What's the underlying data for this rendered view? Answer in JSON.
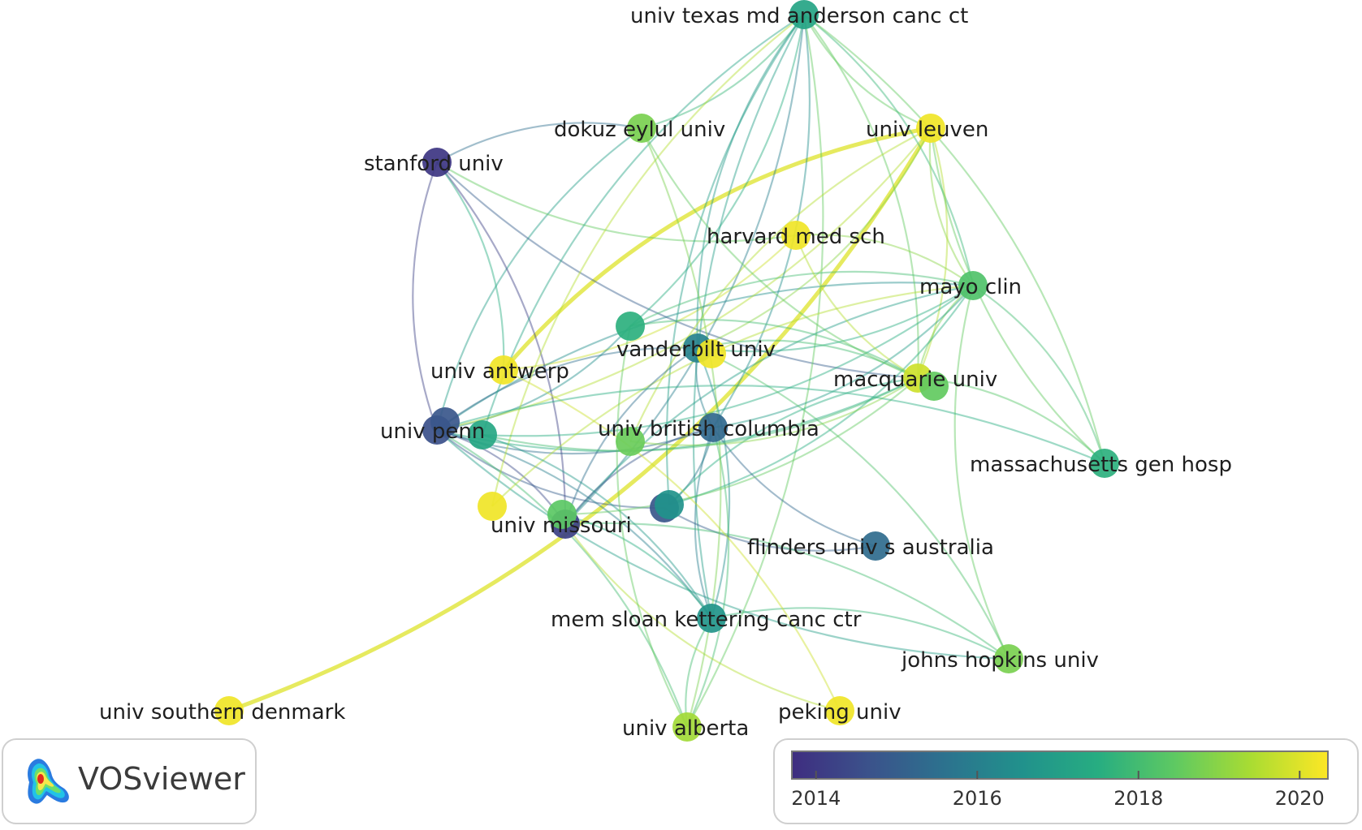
{
  "app": {
    "logo_text": "VOSviewer"
  },
  "legend": {
    "ticks": [
      "2014",
      "2016",
      "2018",
      "2020"
    ],
    "tick_values": [
      2014,
      2016,
      2018,
      2020
    ],
    "range": [
      2013.7,
      2020.35
    ],
    "colormap": [
      "#3e2d80",
      "#3b528b",
      "#2c728e",
      "#21918c",
      "#27ad81",
      "#5ec962",
      "#aadc32",
      "#fde725"
    ]
  },
  "network": {
    "nodes": [
      {
        "id": "mdanderson",
        "label": "univ texas md anderson canc ct",
        "year": 2017.2
      },
      {
        "id": "dokuz",
        "label": "dokuz eylul univ",
        "year": 2018.8
      },
      {
        "id": "leuven",
        "label": "univ leuven",
        "year": 2020.2
      },
      {
        "id": "stanford",
        "label": "stanford univ",
        "year": 2013.9
      },
      {
        "id": "harvard",
        "label": "harvard med sch",
        "year": 2020.2
      },
      {
        "id": "mayo",
        "label": "mayo clin",
        "year": 2018.2
      },
      {
        "id": "unl1",
        "label": "",
        "year": 2017.6
      },
      {
        "id": "vanderbilt",
        "label": "vanderbilt univ",
        "year": 2016.1
      },
      {
        "id": "vandy_y",
        "label": "",
        "year": 2020.2
      },
      {
        "id": "antwerp",
        "label": "univ antwerp",
        "year": 2020.2
      },
      {
        "id": "macquarie",
        "label": "macquarie univ",
        "year": 2019.8
      },
      {
        "id": "macq_g",
        "label": "",
        "year": 2018.5
      },
      {
        "id": "penn",
        "label": "univ penn",
        "year": 2014.6
      },
      {
        "id": "penn2",
        "label": "",
        "year": 2014.8
      },
      {
        "id": "penn_g",
        "label": "",
        "year": 2017.3
      },
      {
        "id": "ubc",
        "label": "univ british columbia",
        "year": 2015.3
      },
      {
        "id": "ubc_g",
        "label": "",
        "year": 2018.6
      },
      {
        "id": "massgen",
        "label": "massachusetts gen hosp",
        "year": 2017.6
      },
      {
        "id": "missouri",
        "label": "univ missouri",
        "year": 2014.2
      },
      {
        "id": "miss_g",
        "label": "",
        "year": 2018.4
      },
      {
        "id": "miss_y",
        "label": "",
        "year": 2020.2
      },
      {
        "id": "unl2",
        "label": "",
        "year": 2014.8
      },
      {
        "id": "unl3",
        "label": "",
        "year": 2016.6
      },
      {
        "id": "flinders",
        "label": "flinders univ s australia",
        "year": 2015.4
      },
      {
        "id": "msk",
        "label": "mem sloan kettering canc ctr",
        "year": 2016.7
      },
      {
        "id": "jhu",
        "label": "johns hopkins univ",
        "year": 2018.8
      },
      {
        "id": "southern_denmark",
        "label": "univ southern denmark",
        "year": 2020.2
      },
      {
        "id": "alberta",
        "label": "univ alberta",
        "year": 2019.3
      },
      {
        "id": "peking",
        "label": "peking univ",
        "year": 2020.2
      }
    ],
    "links": [
      [
        "southern_denmark",
        "leuven",
        2020.0
      ],
      [
        "antwerp",
        "leuven",
        2020.0
      ],
      [
        "antwerp",
        "harvard",
        2019.8
      ],
      [
        "penn",
        "mayo",
        2016.5
      ],
      [
        "penn",
        "macquarie",
        2017.5
      ],
      [
        "penn",
        "vanderbilt",
        2015.5
      ],
      [
        "penn",
        "ubc",
        2015.5
      ],
      [
        "penn",
        "missouri",
        2014.5
      ],
      [
        "penn",
        "unl2",
        2015.0
      ],
      [
        "penn",
        "msk",
        2016.0
      ],
      [
        "penn",
        "jhu",
        2017.0
      ],
      [
        "penn",
        "alberta",
        2018.0
      ],
      [
        "penn",
        "unl1",
        2016.5
      ],
      [
        "penn",
        "dokuz",
        2017.0
      ],
      [
        "penn",
        "leuven",
        2019.5
      ],
      [
        "stanford",
        "dokuz",
        2015.5
      ],
      [
        "stanford",
        "penn",
        2014.2
      ],
      [
        "stanford",
        "missouri",
        2014.2
      ],
      [
        "stanford",
        "macquarie",
        2015.0
      ],
      [
        "stanford",
        "antwerp",
        2017.5
      ],
      [
        "stanford",
        "harvard",
        2018.5
      ],
      [
        "mdanderson",
        "dokuz",
        2017.8
      ],
      [
        "mdanderson",
        "leuven",
        2018.5
      ],
      [
        "mdanderson",
        "mayo",
        2017.8
      ],
      [
        "mdanderson",
        "vanderbilt",
        2016.8
      ],
      [
        "mdanderson",
        "unl1",
        2017.5
      ],
      [
        "mdanderson",
        "penn_g",
        2017.2
      ],
      [
        "mdanderson",
        "ubc",
        2016.5
      ],
      [
        "mdanderson",
        "unl3",
        2017.0
      ],
      [
        "mdanderson",
        "macquarie",
        2018.5
      ],
      [
        "mdanderson",
        "msk",
        2017.0
      ],
      [
        "mdanderson",
        "alberta",
        2018.5
      ],
      [
        "mdanderson",
        "miss_y",
        2019.5
      ],
      [
        "mdanderson",
        "missouri",
        2016.0
      ],
      [
        "leuven",
        "mayo",
        2019.0
      ],
      [
        "leuven",
        "macquarie",
        2019.5
      ],
      [
        "leuven",
        "massgen",
        2018.5
      ],
      [
        "leuven",
        "vanderbilt",
        2019.0
      ],
      [
        "leuven",
        "ubc_g",
        2019.5
      ],
      [
        "mayo",
        "massgen",
        2018.0
      ],
      [
        "mayo",
        "macquarie",
        2018.8
      ],
      [
        "mayo",
        "vanderbilt",
        2017.5
      ],
      [
        "mayo",
        "unl1",
        2018.0
      ],
      [
        "mayo",
        "ubc",
        2017.0
      ],
      [
        "mayo",
        "jhu",
        2018.5
      ],
      [
        "mayo",
        "unl3",
        2017.5
      ],
      [
        "mayo",
        "missouri",
        2017.0
      ],
      [
        "mayo",
        "penn_g",
        2017.5
      ],
      [
        "mayo",
        "miss_y",
        2019.5
      ],
      [
        "mdanderson",
        "massgen",
        2018.5
      ],
      [
        "massgen",
        "macquarie",
        2018.3
      ],
      [
        "vanderbilt",
        "macquarie",
        2018.0
      ],
      [
        "vanderbilt",
        "ubc",
        2016.0
      ],
      [
        "vanderbilt",
        "msk",
        2016.5
      ],
      [
        "vanderbilt",
        "missouri",
        2015.5
      ],
      [
        "vanderbilt",
        "jhu",
        2018.2
      ],
      [
        "ubc",
        "flinders",
        2015.3
      ],
      [
        "ubc",
        "unl3",
        2015.8
      ],
      [
        "ubc",
        "msk",
        2016.0
      ],
      [
        "ubc",
        "alberta",
        2018.0
      ],
      [
        "ubc",
        "missouri",
        2014.8
      ],
      [
        "unl3",
        "macquarie",
        2017.5
      ],
      [
        "unl2",
        "flinders",
        2015.0
      ],
      [
        "msk",
        "jhu",
        2017.8
      ],
      [
        "msk",
        "alberta",
        2018.0
      ],
      [
        "missouri",
        "jhu",
        2018.0
      ],
      [
        "missouri",
        "peking",
        2019.5
      ],
      [
        "antwerp",
        "peking",
        2019.8
      ],
      [
        "ubc_g",
        "macquarie",
        2019.0
      ],
      [
        "penn_g",
        "msk",
        2016.8
      ],
      [
        "penn_g",
        "macquarie",
        2018.0
      ],
      [
        "unl1",
        "macquarie",
        2018.0
      ],
      [
        "miss_g",
        "macquarie",
        2018.5
      ],
      [
        "miss_g",
        "msk",
        2017.5
      ],
      [
        "harvard",
        "macquarie",
        2019.5
      ],
      [
        "harvard",
        "mayo",
        2019.0
      ],
      [
        "dokuz",
        "macquarie",
        2018.5
      ],
      [
        "dokuz",
        "alberta",
        2018.8
      ],
      [
        "unl1",
        "alberta",
        2018.5
      ],
      [
        "penn",
        "massgen",
        2017.5
      ]
    ]
  }
}
